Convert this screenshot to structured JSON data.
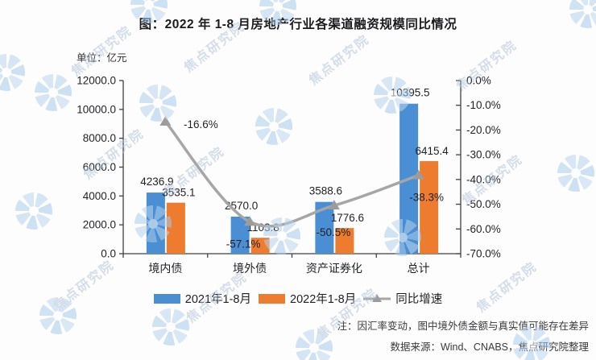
{
  "header": {
    "title": "图：2022 年 1-8 月房地产行业各渠道融资规模同比情况",
    "unit_label": "单位：亿元"
  },
  "chart_data": {
    "type": "bar",
    "title": "图：2022 年 1-8 月房地产行业各渠道融资规模同比情况",
    "ylabel": "亿元",
    "categories": [
      "境内债",
      "境外债",
      "资产证券化",
      "总计"
    ],
    "series": [
      {
        "name": "2021年1-8月",
        "type": "bar",
        "color": "#4a8fd3",
        "values": [
          4236.9,
          2570.0,
          3588.6,
          10395.5
        ],
        "labels": [
          "4236.9",
          "2570.0",
          "3588.6",
          "10395.5"
        ]
      },
      {
        "name": "2022年1-8月",
        "type": "bar",
        "color": "#ed7c2f",
        "values": [
          3535.1,
          1103.8,
          1776.6,
          6415.4
        ],
        "labels": [
          "3535.1",
          "1103.8",
          "1776.6",
          "6415.4"
        ]
      },
      {
        "name": "同比增速",
        "type": "line",
        "axis": "right",
        "color": "#a6a6a6",
        "marker": "triangle",
        "values": [
          -16.6,
          -57.1,
          -50.5,
          -38.3
        ],
        "labels": [
          "-16.6%",
          "-57.1%",
          "-50.5%",
          "-38.3%"
        ]
      }
    ],
    "left_axis": {
      "min": 0,
      "max": 12000,
      "step": 2000,
      "tick_labels": [
        "0.0",
        "2000.0",
        "4000.0",
        "6000.0",
        "8000.0",
        "10000.0",
        "12000.0"
      ]
    },
    "right_axis": {
      "min": -70,
      "max": 0,
      "step": 10,
      "tick_labels": [
        "0.0%",
        "-10.0%",
        "-20.0%",
        "-30.0%",
        "-40.0%",
        "-50.0%",
        "-60.0%",
        "-70.0%"
      ]
    },
    "grid": false,
    "legend_position": "bottom"
  },
  "footer": {
    "note": "注：因汇率变动，图中境外债金额与真实值可能存在差异",
    "source": "数据来源：Wind、CNABS，焦点研究院整理"
  },
  "watermark": {
    "text": "焦点研究院"
  }
}
